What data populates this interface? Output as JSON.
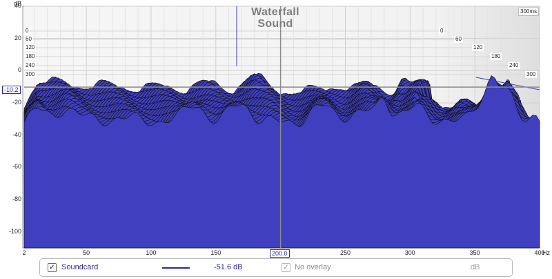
{
  "graph": {
    "title_line1": "Waterfall",
    "title_line2": "Sound",
    "y_unit": "dB",
    "x_unit_suffix": "Hz",
    "window_time": "300ms",
    "y_ticks": [
      "40",
      "20",
      "0",
      "-20",
      "-40",
      "-60",
      "-80",
      "-100"
    ],
    "x_ticks": [
      "2",
      "50",
      "100",
      "150",
      "200",
      "250",
      "300",
      "350",
      "400"
    ],
    "depth_labels_left": [
      "0",
      "60",
      "120",
      "180",
      "240",
      "300"
    ],
    "depth_labels_right": [
      "0",
      "60",
      "120",
      "180",
      "240",
      "300"
    ],
    "cursor_y_value": "-10.2",
    "cursor_x_value": "200.0",
    "y_range": [
      -110,
      40
    ],
    "x_range": [
      2,
      400
    ],
    "fill_color": "#3f3fbf",
    "line_color": "#101010"
  },
  "legend": {
    "trace_checked": true,
    "trace_name": "Soundcard",
    "trace_value": "-51.6 dB",
    "trace_color": "#2a2a9a",
    "overlay_checked": true,
    "overlay_label": "No overlay",
    "overlay_unit": "dB"
  },
  "icons": {
    "checkbox_mark": "✓"
  }
}
